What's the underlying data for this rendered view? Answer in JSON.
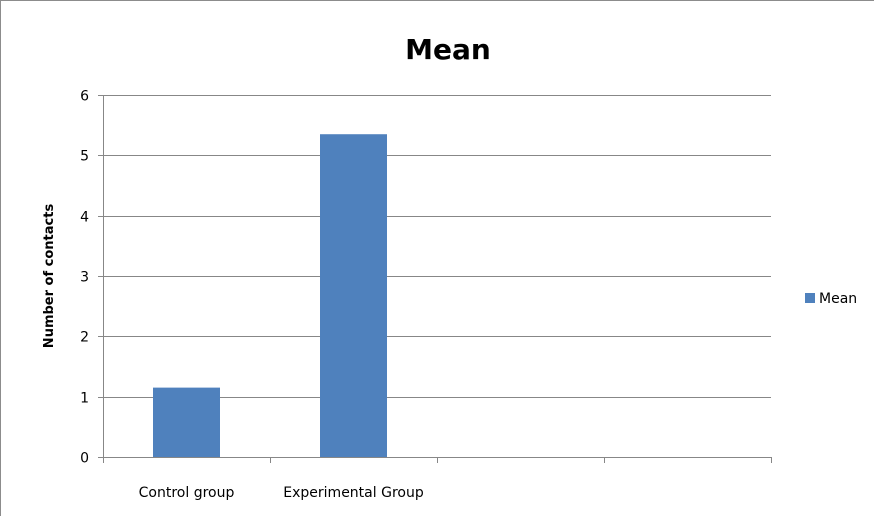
{
  "chart_data": {
    "type": "bar",
    "title": "Mean",
    "xlabel": "",
    "ylabel": "Number of contacts",
    "categories": [
      "Control group",
      "Experimental Group",
      "",
      ""
    ],
    "series": [
      {
        "name": "Mean",
        "values": [
          1.15,
          5.35,
          null,
          null
        ],
        "color": "#4f81bd"
      }
    ],
    "ylim": [
      0,
      6
    ],
    "yticks": [
      "0",
      "1",
      "2",
      "3",
      "4",
      "5",
      "6"
    ],
    "grid": true,
    "legend_position": "right",
    "colors": {
      "gridline": "#878787",
      "axis": "#878787",
      "frame": "#8c8c8c"
    }
  }
}
